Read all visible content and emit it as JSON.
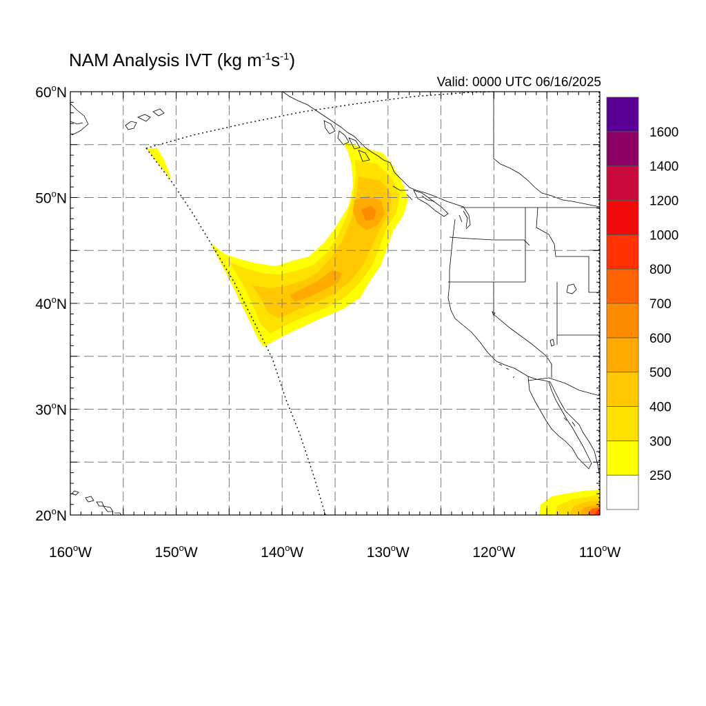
{
  "title": {
    "prefix": "NAM Analysis IVT (kg m",
    "sup1": "-1",
    "mid": "s",
    "sup2": "-1",
    "suffix": ")"
  },
  "valid_time": "Valid: 0000 UTC 06/16/2025",
  "map": {
    "lon_range": [
      -160,
      -110
    ],
    "lat_range": [
      20,
      60
    ],
    "lon_labels": [
      {
        "lon": -160,
        "text": "160",
        "hem": "W"
      },
      {
        "lon": -150,
        "text": "150",
        "hem": "W"
      },
      {
        "lon": -140,
        "text": "140",
        "hem": "W"
      },
      {
        "lon": -130,
        "text": "130",
        "hem": "W"
      },
      {
        "lon": -120,
        "text": "120",
        "hem": "W"
      },
      {
        "lon": -110,
        "text": "110",
        "hem": "W"
      }
    ],
    "lat_labels": [
      {
        "lat": 60,
        "text": "60",
        "hem": "N"
      },
      {
        "lat": 50,
        "text": "50",
        "hem": "N"
      },
      {
        "lat": 40,
        "text": "40",
        "hem": "N"
      },
      {
        "lat": 30,
        "text": "30",
        "hem": "N"
      },
      {
        "lat": 20,
        "text": "20",
        "hem": "N"
      }
    ],
    "grid_lons": [
      -155,
      -150,
      -145,
      -140,
      -135,
      -130,
      -125,
      -120,
      -115
    ],
    "grid_lats": [
      25,
      30,
      35,
      40,
      45,
      50,
      55
    ],
    "grid_style": "dashed"
  },
  "colorbar": {
    "labels": [
      "250",
      "300",
      "400",
      "500",
      "600",
      "700",
      "800",
      "1000",
      "1200",
      "1400",
      "1600"
    ],
    "colors": [
      "#ffffff",
      "#ffff00",
      "#ffe100",
      "#ffc800",
      "#ffaa00",
      "#ff8c00",
      "#ff6400",
      "#ff3200",
      "#f00a0a",
      "#c80a3c",
      "#8c0064",
      "#5a0096"
    ]
  }
}
